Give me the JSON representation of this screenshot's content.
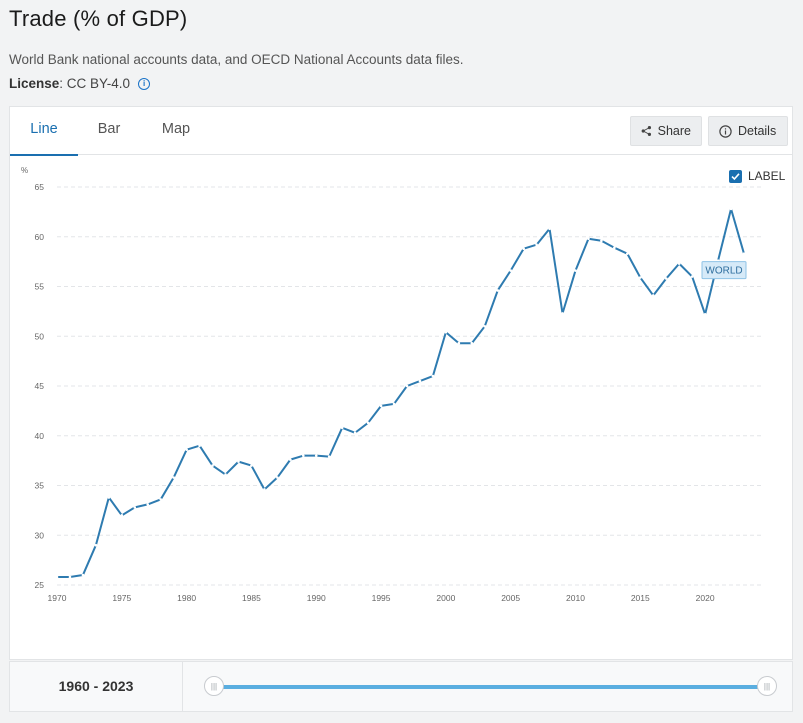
{
  "header": {
    "title": "Trade (% of GDP)",
    "source": "World Bank national accounts data, and OECD National Accounts data files.",
    "license_label": "License",
    "license_value": " : CC BY-4.0",
    "info_icon": "info-icon"
  },
  "tabs": [
    {
      "label": "Line",
      "active": true
    },
    {
      "label": "Bar",
      "active": false
    },
    {
      "label": "Map",
      "active": false
    }
  ],
  "actions": {
    "share_label": "Share",
    "share_icon": "share-icon",
    "details_label": "Details",
    "details_icon": "info-icon"
  },
  "label_toggle": {
    "label": "LABEL",
    "checked": true
  },
  "range": {
    "label": "1960 - 2023",
    "start": 1960,
    "end": 2023
  },
  "colors": {
    "line": "#2e7bb0",
    "accent": "#1a6fb0",
    "track": "#5aaee0"
  },
  "chart_data": {
    "type": "line",
    "ylabel": "%",
    "ylim": [
      25,
      65
    ],
    "yticks": [
      25,
      30,
      35,
      40,
      45,
      50,
      55,
      60,
      65
    ],
    "xlim": [
      1970,
      2023
    ],
    "xticks": [
      1970,
      1975,
      1980,
      1985,
      1990,
      1995,
      2000,
      2005,
      2010,
      2015,
      2020
    ],
    "grid": true,
    "series": [
      {
        "name": "WORLD",
        "x": [
          1970,
          1971,
          1972,
          1973,
          1974,
          1975,
          1976,
          1977,
          1978,
          1979,
          1980,
          1981,
          1982,
          1983,
          1984,
          1985,
          1986,
          1987,
          1988,
          1989,
          1990,
          1991,
          1992,
          1993,
          1994,
          1995,
          1996,
          1997,
          1998,
          1999,
          2000,
          2001,
          2002,
          2003,
          2004,
          2005,
          2006,
          2007,
          2008,
          2009,
          2010,
          2011,
          2012,
          2013,
          2014,
          2015,
          2016,
          2017,
          2018,
          2019,
          2020,
          2021,
          2022,
          2023
        ],
        "values": [
          25.8,
          25.8,
          26.0,
          29.0,
          33.8,
          32.0,
          32.8,
          33.1,
          33.6,
          35.8,
          38.6,
          39.0,
          37.0,
          36.1,
          37.4,
          37.0,
          34.6,
          35.8,
          37.6,
          38.0,
          38.0,
          37.9,
          40.8,
          40.3,
          41.3,
          43.0,
          43.2,
          45.0,
          45.5,
          46.0,
          50.4,
          49.3,
          49.3,
          51.0,
          54.6,
          56.6,
          58.8,
          59.2,
          60.8,
          52.3,
          56.6,
          59.8,
          59.6,
          58.9,
          58.3,
          55.9,
          54.1,
          55.8,
          57.3,
          56.0,
          52.2,
          57.6,
          62.8,
          58.3
        ]
      }
    ]
  }
}
